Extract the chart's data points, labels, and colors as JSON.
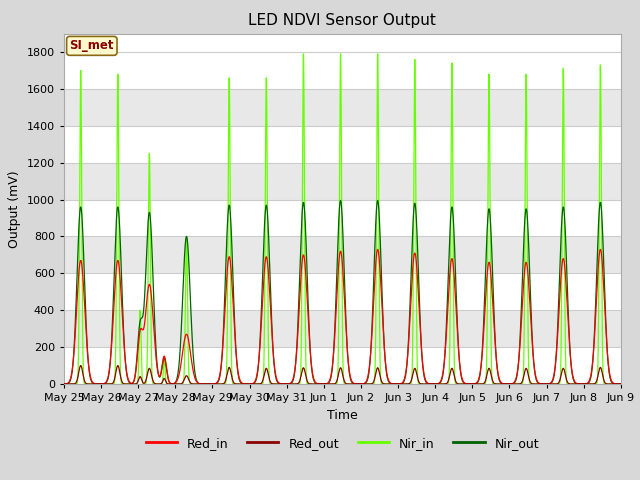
{
  "title": "LED NDVI Sensor Output",
  "xlabel": "Time",
  "ylabel": "Output (mV)",
  "ylim": [
    0,
    1900
  ],
  "yticks": [
    0,
    200,
    400,
    600,
    800,
    1000,
    1200,
    1400,
    1600,
    1800
  ],
  "tick_labels": [
    "May 25",
    "May 26",
    "May 27",
    "May 28",
    "May 29",
    "May 30",
    "May 31",
    "Jun 1",
    "Jun 2",
    "Jun 3",
    "Jun 4",
    "Jun 5",
    "Jun 6",
    "Jun 7",
    "Jun 8",
    "Jun 9"
  ],
  "annotation_text": "SI_met",
  "annotation_color": "#8B0000",
  "annotation_bg": "#FFFACD",
  "annotation_border": "#8B6914",
  "colors": {
    "Red_in": "#FF0000",
    "Red_out": "#8B0000",
    "Nir_in": "#66FF00",
    "Nir_out": "#006400"
  },
  "bg_color": "#D8D8D8",
  "plot_bg": "#FFFFFF",
  "grid_color": "#CCCCCC",
  "band_color": "#E8E8E8"
}
